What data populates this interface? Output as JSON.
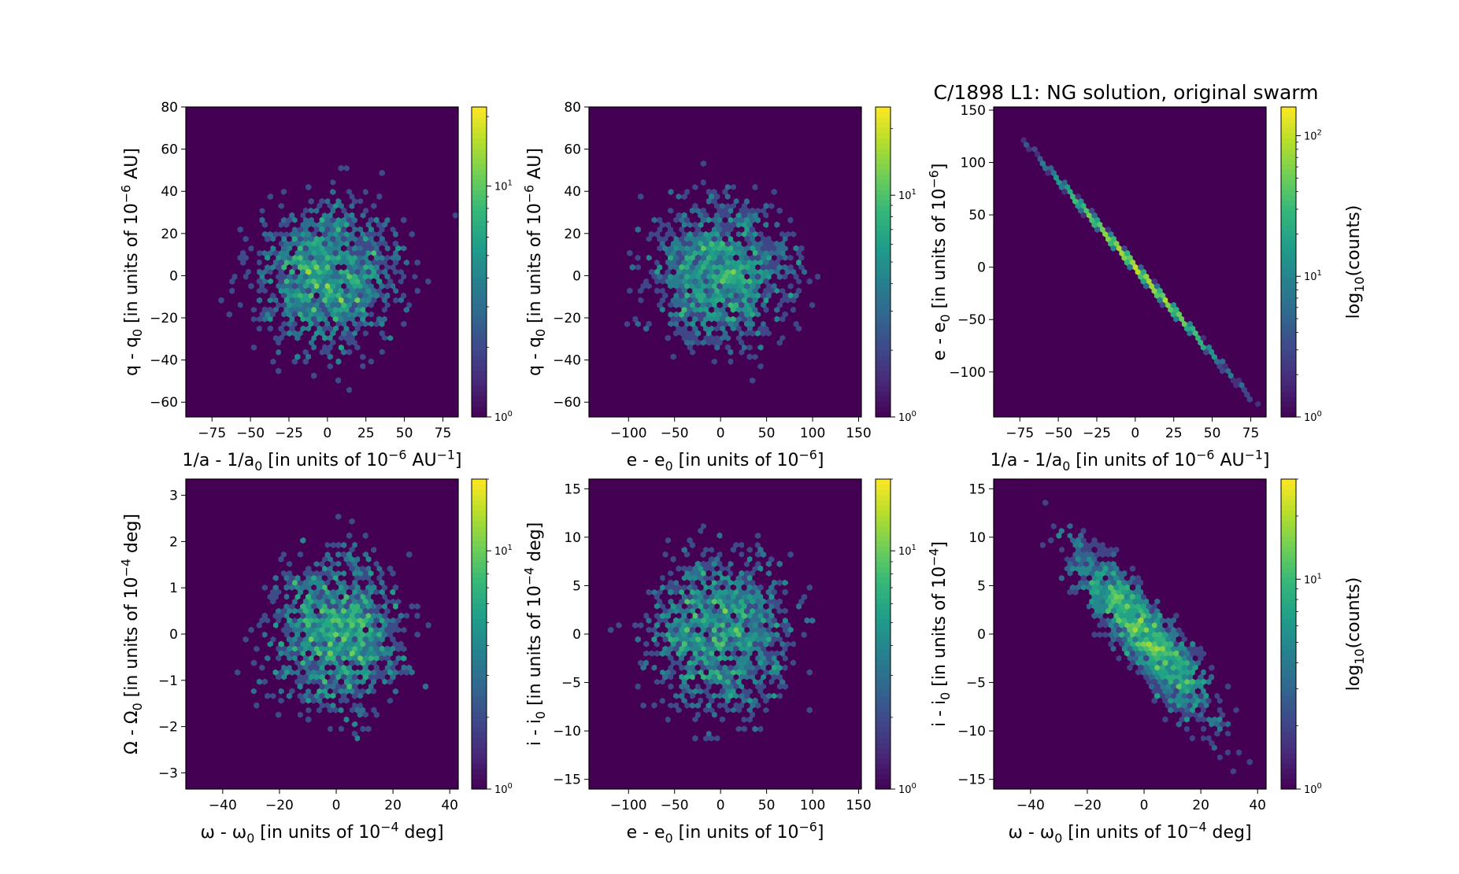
{
  "figure": {
    "title": "C/1898 L1:  NG solution, original swarm",
    "colormap": [
      "#440154",
      "#482878",
      "#3e4989",
      "#31688e",
      "#26828e",
      "#1f9e89",
      "#35b779",
      "#6ece58",
      "#b5de2b",
      "#fde725"
    ]
  },
  "chart_data": [
    {
      "type": "heatmap",
      "subtype": "hexbin",
      "xlabel": "1/a - 1/a",
      "xlabel_sub": "0",
      "xlabel_tail": " [in units of 10",
      "xlabel_sup": "−6",
      "xlabel_end": " AU",
      "xlabel_sup2": "−1",
      "xlabel_close": "]",
      "ylabel": "q - q",
      "ylabel_sub": "0",
      "ylabel_tail": " [in units of 10",
      "ylabel_sup": "−6",
      "ylabel_end": " AU]",
      "xlim": [
        -92,
        85
      ],
      "ylim": [
        -67,
        80
      ],
      "xticks": [
        -75,
        -50,
        -25,
        0,
        25,
        50,
        75
      ],
      "yticks": [
        -60,
        -40,
        -20,
        0,
        20,
        40,
        60,
        80
      ],
      "x_sigma": 27,
      "y_sigma": 20,
      "correlation": 0.0,
      "points": 2600,
      "colorbar": {
        "scale": "log",
        "min": 1,
        "max": 22,
        "ticks": [
          "10^0",
          "10^1"
        ],
        "label": ""
      }
    },
    {
      "type": "heatmap",
      "subtype": "hexbin",
      "xlabel": "e - e",
      "xlabel_sub": "0",
      "xlabel_tail": " [in units of 10",
      "xlabel_sup": "−6",
      "xlabel_end": "]",
      "ylabel": "q - q",
      "ylabel_sub": "0",
      "ylabel_tail": " [in units of 10",
      "ylabel_sup": "−6",
      "ylabel_end": " AU]",
      "xlim": [
        -143,
        153
      ],
      "ylim": [
        -67,
        80
      ],
      "xticks": [
        -100,
        -50,
        0,
        50,
        100,
        150
      ],
      "yticks": [
        -60,
        -40,
        -20,
        0,
        20,
        40,
        60,
        80
      ],
      "x_sigma": 45,
      "y_sigma": 20,
      "correlation": 0.0,
      "points": 2600,
      "colorbar": {
        "scale": "log",
        "min": 1,
        "max": 25,
        "ticks": [
          "10^0",
          "10^1"
        ],
        "label": ""
      }
    },
    {
      "type": "heatmap",
      "subtype": "hexbin",
      "xlabel": "1/a - 1/a",
      "xlabel_sub": "0",
      "xlabel_tail": " [in units of 10",
      "xlabel_sup": "−6",
      "xlabel_end": " AU",
      "xlabel_sup2": "−1",
      "xlabel_close": "]",
      "ylabel": "e - e",
      "ylabel_sub": "0",
      "ylabel_tail": " [in units of 10",
      "ylabel_sup": "−6",
      "ylabel_end": "]",
      "xlim": [
        -92,
        85
      ],
      "ylim": [
        -143,
        153
      ],
      "xticks": [
        -75,
        -50,
        -25,
        0,
        25,
        50,
        75
      ],
      "yticks": [
        -100,
        -50,
        0,
        50,
        100,
        150
      ],
      "x_sigma": 27,
      "y_sigma": 45,
      "correlation": -0.9995,
      "points": 2600,
      "colorbar": {
        "scale": "log",
        "min": 1,
        "max": 160,
        "ticks": [
          "10^0",
          "10^1",
          "10^2"
        ],
        "label": "log",
        "label_sub": "10",
        "label_tail": "(counts)"
      }
    },
    {
      "type": "heatmap",
      "subtype": "hexbin",
      "xlabel": "ω - ω",
      "xlabel_sub": "0",
      "xlabel_tail": " [in units of 10",
      "xlabel_sup": "−4",
      "xlabel_end": " deg]",
      "ylabel": "Ω - Ω",
      "ylabel_sub": "0",
      "ylabel_tail": " [in units of 10",
      "ylabel_sup": "−4",
      "ylabel_end": " deg]",
      "xlim": [
        -53,
        43
      ],
      "ylim": [
        -3.35,
        3.35
      ],
      "xticks": [
        -40,
        -20,
        0,
        20,
        40
      ],
      "yticks": [
        -3,
        -2,
        -1,
        0,
        1,
        2,
        3
      ],
      "x_sigma": 14,
      "y_sigma": 1.0,
      "correlation": 0.0,
      "points": 2600,
      "colorbar": {
        "scale": "log",
        "min": 1,
        "max": 20,
        "ticks": [
          "10^0",
          "10^1"
        ],
        "label": ""
      }
    },
    {
      "type": "heatmap",
      "subtype": "hexbin",
      "xlabel": "e - e",
      "xlabel_sub": "0",
      "xlabel_tail": " [in units of 10",
      "xlabel_sup": "−6",
      "xlabel_end": "]",
      "ylabel": "i - i",
      "ylabel_sub": "0",
      "ylabel_tail": " [in units of 10",
      "ylabel_sup": "−4",
      "ylabel_end": " deg]",
      "xlim": [
        -143,
        153
      ],
      "ylim": [
        -16,
        16
      ],
      "xticks": [
        -100,
        -50,
        0,
        50,
        100,
        150
      ],
      "yticks": [
        -15,
        -10,
        -5,
        0,
        5,
        10,
        15
      ],
      "x_sigma": 45,
      "y_sigma": 5,
      "correlation": 0.0,
      "points": 2600,
      "colorbar": {
        "scale": "log",
        "min": 1,
        "max": 20,
        "ticks": [
          "10^0",
          "10^1"
        ],
        "label": ""
      }
    },
    {
      "type": "heatmap",
      "subtype": "hexbin",
      "xlabel": "ω - ω",
      "xlabel_sub": "0",
      "xlabel_tail": " [in units of 10",
      "xlabel_sup": "−4",
      "xlabel_end": " deg]",
      "ylabel": "i - i",
      "ylabel_sub": "0",
      "ylabel_tail": " [in units of 10",
      "ylabel_sup": "−4",
      "ylabel_end": "]",
      "xlim": [
        -53,
        43
      ],
      "ylim": [
        -16,
        16
      ],
      "xticks": [
        -40,
        -20,
        0,
        20,
        40
      ],
      "yticks": [
        -15,
        -10,
        -5,
        0,
        5,
        10,
        15
      ],
      "x_sigma": 14,
      "y_sigma": 5,
      "correlation": -0.88,
      "points": 2600,
      "colorbar": {
        "scale": "log",
        "min": 1,
        "max": 30,
        "ticks": [
          "10^0",
          "10^1"
        ],
        "label": "log",
        "label_sub": "10",
        "label_tail": "(counts)"
      }
    }
  ]
}
